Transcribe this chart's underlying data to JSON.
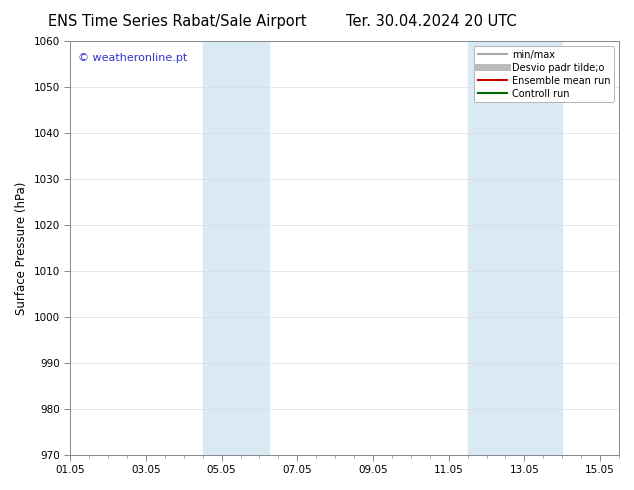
{
  "title_left": "ENS Time Series Rabat/Sale Airport",
  "title_right": "Ter. 30.04.2024 20 UTC",
  "ylabel": "Surface Pressure (hPa)",
  "ylim": [
    970,
    1060
  ],
  "yticks": [
    970,
    980,
    990,
    1000,
    1010,
    1020,
    1030,
    1040,
    1050,
    1060
  ],
  "xlim": [
    0,
    14.5
  ],
  "xtick_labels": [
    "01.05",
    "03.05",
    "05.05",
    "07.05",
    "09.05",
    "11.05",
    "13.05",
    "15.05"
  ],
  "xtick_positions": [
    0,
    2,
    4,
    6,
    8,
    10,
    12,
    14
  ],
  "shade_bands": [
    {
      "start": 3.5,
      "end": 5.25
    },
    {
      "start": 10.5,
      "end": 13.0
    }
  ],
  "shade_color": "#daeaf5",
  "watermark": "© weatheronline.pt",
  "watermark_color": "#3333cc",
  "legend_entries": [
    {
      "label": "min/max",
      "color": "#aaaaaa",
      "lw": 1.5
    },
    {
      "label": "Desvio padr tilde;o",
      "color": "#bbbbbb",
      "lw": 5
    },
    {
      "label": "Ensemble mean run",
      "color": "#cc0000",
      "lw": 1.5
    },
    {
      "label": "Controll run",
      "color": "#006600",
      "lw": 1.5
    }
  ],
  "bg_color": "#ffffff",
  "plot_bg_color": "#ffffff",
  "title_fontsize": 10.5,
  "tick_fontsize": 7.5,
  "ylabel_fontsize": 8.5,
  "legend_fontsize": 7,
  "watermark_fontsize": 8
}
